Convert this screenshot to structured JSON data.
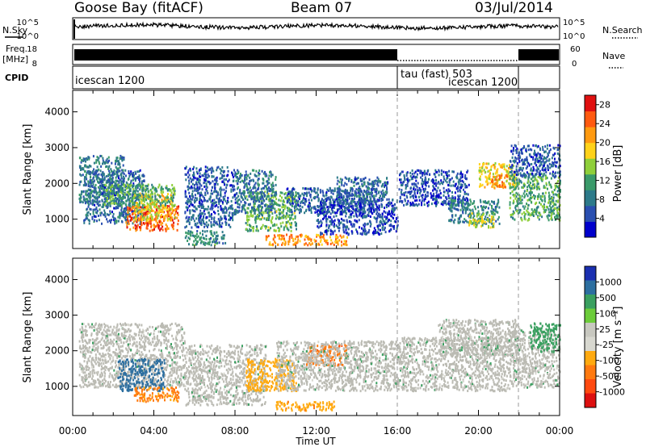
{
  "header": {
    "station": "Goose Bay (fitACF)",
    "beam": "Beam 07",
    "date": "03/Jul/2014"
  },
  "left_labels": {
    "nsky": "N.Sky",
    "freq_line1": "Freq.",
    "freq_line2": "[MHz]",
    "cpid": "CPID"
  },
  "right_labels": {
    "nsearch": "N.Search",
    "nave": "Nave"
  },
  "noise_panel": {
    "left_ticks": [
      "10^5",
      "10^0"
    ],
    "right_ticks": [
      "10^5",
      "10^0"
    ]
  },
  "freq_panel": {
    "left_ticks": [
      "18",
      "8"
    ],
    "right_ticks": [
      "60",
      "0"
    ]
  },
  "cpid_segments": [
    {
      "label": "icescan 1200",
      "start_hour": 0,
      "end_hour": 16
    },
    {
      "label": "tau (fast) 503",
      "start_hour": 16,
      "end_hour": 22
    },
    {
      "label": "icescan 1200",
      "start_hour": 18.5,
      "end_hour": 22
    }
  ],
  "time_axis": {
    "title": "Time UT",
    "ticks": [
      "00:00",
      "04:00",
      "08:00",
      "12:00",
      "16:00",
      "20:00",
      "00:00"
    ]
  },
  "colors": {
    "power": [
      "#0000cc",
      "#2a4fb0",
      "#2d7a8a",
      "#3a9a6a",
      "#8fcf3a",
      "#ffd21a",
      "#ff9a10",
      "#ff5a10",
      "#e01010"
    ],
    "velocity": [
      "#1a2fb0",
      "#2d6fa0",
      "#3aa060",
      "#6ccc3a",
      "#c8c8c0",
      "#d8d8d0",
      "#ffaa10",
      "#ff7a10",
      "#ff4a10",
      "#dd1010"
    ],
    "ground_scatter": "#bbbbb3"
  },
  "chart_data": [
    {
      "type": "heatmap",
      "title": "",
      "xlabel": "Time UT",
      "ylabel": "Slant Range [km]",
      "xlim_hours": [
        0,
        24
      ],
      "ylim": [
        180,
        4600
      ],
      "yticks": [
        "1000",
        "2000",
        "3000",
        "4000"
      ],
      "colorbar": {
        "label": "Power [dB]",
        "ticks": [
          "4",
          "8",
          "12",
          "16",
          "20",
          "24",
          "28"
        ],
        "range": [
          0,
          30
        ]
      },
      "blobs": [
        {
          "t0": 0.3,
          "t1": 2.5,
          "r0": 1500,
          "r1": 2800,
          "value": 9
        },
        {
          "t0": 0.5,
          "t1": 3.5,
          "r0": 900,
          "r1": 2400,
          "value": 7
        },
        {
          "t0": 2.6,
          "t1": 5.2,
          "r0": 700,
          "r1": 1400,
          "value": 25
        },
        {
          "t0": 3.0,
          "t1": 5.0,
          "r0": 1000,
          "r1": 1750,
          "value": 18
        },
        {
          "t0": 1.5,
          "t1": 5.0,
          "r0": 1400,
          "r1": 2000,
          "value": 12
        },
        {
          "t0": 5.5,
          "t1": 8.0,
          "r0": 800,
          "r1": 2500,
          "value": 6
        },
        {
          "t0": 5.5,
          "t1": 7.5,
          "r0": 300,
          "r1": 700,
          "value": 10
        },
        {
          "t0": 8.5,
          "t1": 11.0,
          "r0": 700,
          "r1": 1800,
          "value": 13
        },
        {
          "t0": 8.0,
          "t1": 10.0,
          "r0": 1200,
          "r1": 2400,
          "value": 8
        },
        {
          "t0": 9.5,
          "t1": 13.5,
          "r0": 300,
          "r1": 600,
          "value": 22
        },
        {
          "t0": 10.5,
          "t1": 15.0,
          "r0": 1200,
          "r1": 1900,
          "value": 6
        },
        {
          "t0": 12.0,
          "t1": 16.0,
          "r0": 600,
          "r1": 1600,
          "value": 5
        },
        {
          "t0": 13.0,
          "t1": 15.5,
          "r0": 1500,
          "r1": 2200,
          "value": 7
        },
        {
          "t0": 16.0,
          "t1": 19.5,
          "r0": 1400,
          "r1": 2400,
          "value": 5
        },
        {
          "t0": 18.5,
          "t1": 21.0,
          "r0": 900,
          "r1": 1600,
          "value": 9
        },
        {
          "t0": 19.5,
          "t1": 20.8,
          "r0": 800,
          "r1": 1200,
          "value": 16
        },
        {
          "t0": 20.0,
          "t1": 21.8,
          "r0": 1900,
          "r1": 2600,
          "value": 18
        },
        {
          "t0": 20.6,
          "t1": 21.4,
          "r0": 1900,
          "r1": 2250,
          "value": 22
        },
        {
          "t0": 21.5,
          "t1": 24.0,
          "r0": 1000,
          "r1": 2300,
          "value": 12
        },
        {
          "t0": 21.5,
          "t1": 24.0,
          "r0": 2200,
          "r1": 3100,
          "value": 6
        }
      ]
    },
    {
      "type": "heatmap",
      "title": "",
      "xlabel": "Time UT",
      "ylabel": "Slant Range [km]",
      "xlim_hours": [
        0,
        24
      ],
      "ylim": [
        180,
        4600
      ],
      "yticks": [
        "1000",
        "2000",
        "3000",
        "4000"
      ],
      "colorbar": {
        "label": "Velocity [m s⁻¹]",
        "ticks": [
          "1000",
          "500",
          "100",
          "25",
          "-25",
          "-100",
          "-500",
          "-1000"
        ],
        "range": [
          -1000,
          1000
        ]
      },
      "blobs": [
        {
          "t0": 0.3,
          "t1": 5.5,
          "r0": 1000,
          "r1": 2800,
          "value": "gs"
        },
        {
          "t0": 2.2,
          "t1": 4.5,
          "r0": 900,
          "r1": 1800,
          "value": 200
        },
        {
          "t0": 3.0,
          "t1": 5.2,
          "r0": 600,
          "r1": 1000,
          "value": -300
        },
        {
          "t0": 5.5,
          "t1": 9.5,
          "r0": 500,
          "r1": 2200,
          "value": "gs"
        },
        {
          "t0": 8.5,
          "t1": 11.0,
          "r0": 900,
          "r1": 1800,
          "value": -150
        },
        {
          "t0": 10.0,
          "t1": 13.0,
          "r0": 350,
          "r1": 600,
          "value": -200
        },
        {
          "t0": 11.5,
          "t1": 13.5,
          "r0": 1600,
          "r1": 2200,
          "value": -400
        },
        {
          "t0": 10.0,
          "t1": 16.0,
          "r0": 900,
          "r1": 2300,
          "value": "gs"
        },
        {
          "t0": 16.0,
          "t1": 21.5,
          "r0": 900,
          "r1": 2400,
          "value": "gs"
        },
        {
          "t0": 18.0,
          "t1": 22.0,
          "r0": 1900,
          "r1": 2900,
          "value": "gs"
        },
        {
          "t0": 21.5,
          "t1": 24.0,
          "r0": 1000,
          "r1": 2600,
          "value": "gs"
        },
        {
          "t0": 22.5,
          "t1": 24.0,
          "r0": 2000,
          "r1": 2800,
          "value": 60
        }
      ]
    }
  ]
}
